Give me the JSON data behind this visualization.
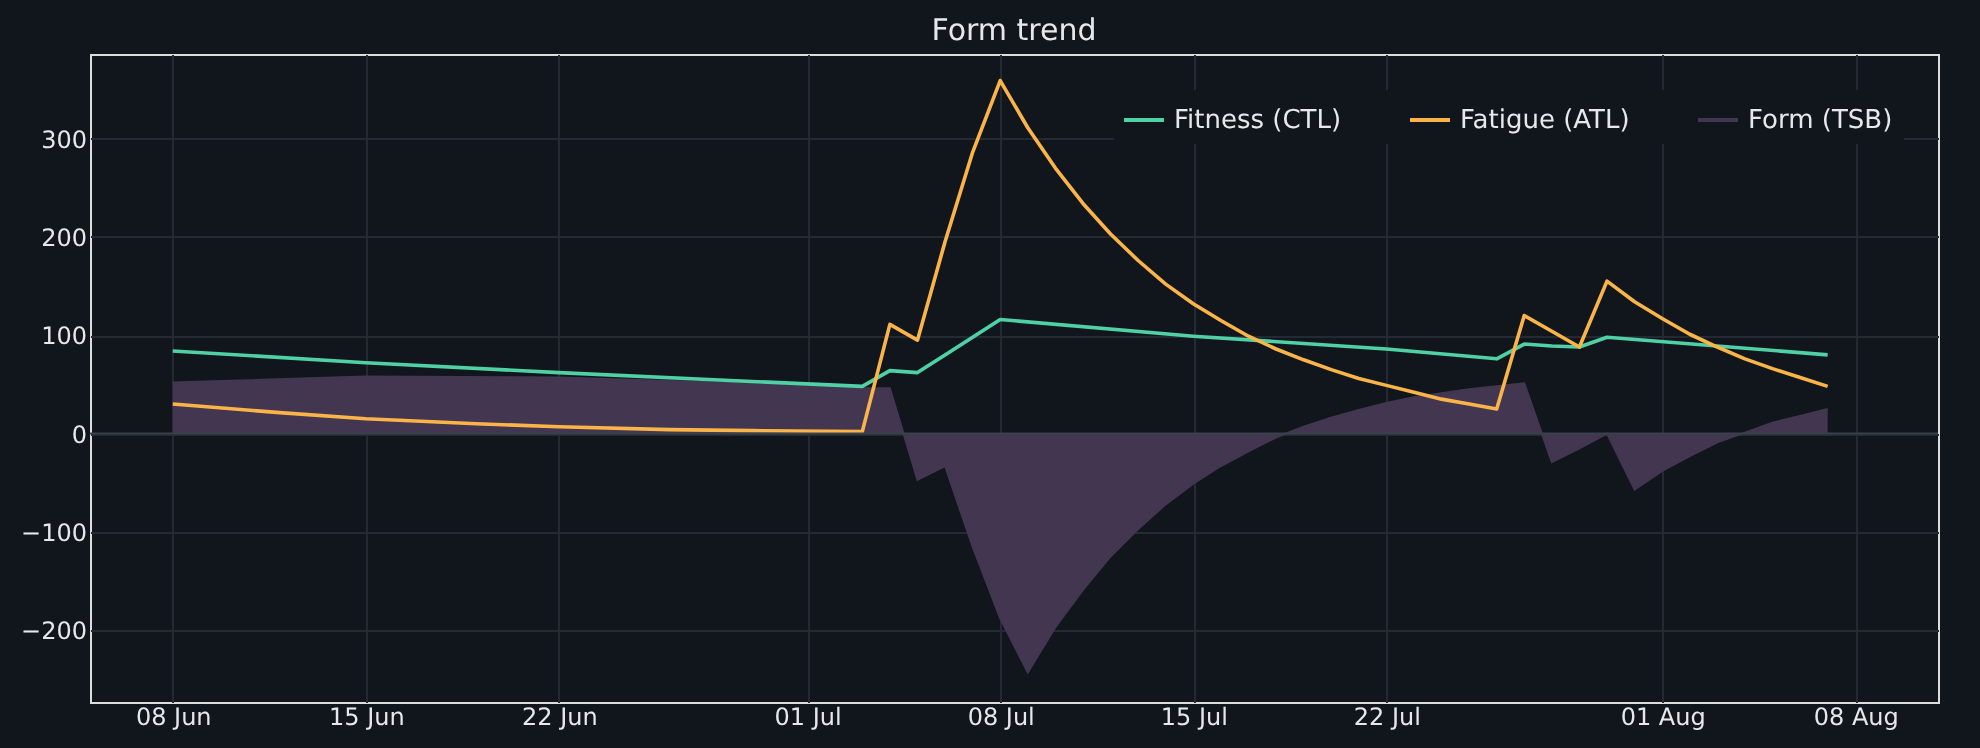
{
  "chart_data": {
    "type": "line",
    "title": "Form trend",
    "xlim": [
      "--06-05",
      "--08-11"
    ],
    "xticks": [
      {
        "value": "--06-08",
        "label": "08 Jun"
      },
      {
        "value": "--06-15",
        "label": "15 Jun"
      },
      {
        "value": "--06-22",
        "label": "22 Jun"
      },
      {
        "value": "--07-01",
        "label": "01 Jul"
      },
      {
        "value": "--07-08",
        "label": "08 Jul"
      },
      {
        "value": "--07-15",
        "label": "15 Jul"
      },
      {
        "value": "--07-22",
        "label": "22 Jul"
      },
      {
        "value": "--08-01",
        "label": "01 Aug"
      },
      {
        "value": "--08-08",
        "label": "08 Aug"
      }
    ],
    "ylim": [
      -273,
      386
    ],
    "yticks": [
      -200,
      -100,
      0,
      100,
      200,
      300
    ],
    "grid": true,
    "legend": "top right",
    "ref_lines": [
      {
        "axis": "y",
        "value": 0,
        "color": "#3a404c"
      }
    ],
    "series": [
      {
        "name": "Form (TSB)",
        "type": "area",
        "color": "#433651",
        "x": [
          "--06-08",
          "--06-15",
          "--06-22",
          "--06-29",
          "--07-03",
          "--07-04",
          "--07-05",
          "--07-06",
          "--07-07",
          "--07-08",
          "--07-09",
          "--07-10",
          "--07-11",
          "--07-12",
          "--07-13",
          "--07-14",
          "--07-15",
          "--07-16",
          "--07-17",
          "--07-18",
          "--07-19",
          "--07-20",
          "--07-21",
          "--07-22",
          "--07-23",
          "--07-24",
          "--07-25",
          "--07-26",
          "--07-27",
          "--07-28",
          "--07-29",
          "--07-30",
          "--07-31",
          "--08-01",
          "--08-02",
          "--08-03",
          "--08-04",
          "--08-05",
          "--08-06",
          "--08-07"
        ],
        "values": [
          52,
          58,
          57,
          51,
          46,
          46,
          -47,
          -33,
          -115,
          -188,
          -243,
          -197,
          -159,
          -125,
          -97,
          -72,
          -51,
          -33,
          -18,
          -4,
          7,
          16,
          24,
          31,
          37,
          41,
          45,
          48,
          51,
          -29,
          -15,
          0,
          -57,
          -38,
          -23,
          -9,
          1,
          11,
          18,
          25
        ]
      },
      {
        "name": "Fitness (CTL)",
        "color": "#4fd1a5",
        "x": [
          "--06-08",
          "--06-15",
          "--06-22",
          "--06-29",
          "--07-03",
          "--07-04",
          "--07-05",
          "--07-06",
          "--07-07",
          "--07-08",
          "--07-15",
          "--07-22",
          "--07-26",
          "--07-27",
          "--07-28",
          "--07-29",
          "--07-30",
          "--08-07"
        ],
        "values": [
          84,
          72,
          62,
          53,
          48,
          64,
          62,
          80,
          98,
          116,
          99,
          86,
          76,
          91,
          89,
          88,
          98,
          80
        ]
      },
      {
        "name": "Fatigue (ATL)",
        "color": "#fbb448",
        "x": [
          "--06-08",
          "--06-12",
          "--06-15",
          "--06-19",
          "--06-22",
          "--06-26",
          "--06-29",
          "--07-03",
          "--07-04",
          "--07-05",
          "--07-06",
          "--07-07",
          "--07-08",
          "--07-09",
          "--07-10",
          "--07-11",
          "--07-12",
          "--07-13",
          "--07-14",
          "--07-15",
          "--07-16",
          "--07-17",
          "--07-18",
          "--07-19",
          "--07-20",
          "--07-21",
          "--07-22",
          "--07-23",
          "--07-24",
          "--07-25",
          "--07-26",
          "--07-27",
          "--07-28",
          "--07-29",
          "--07-30",
          "--07-31",
          "--08-01",
          "--08-02",
          "--08-03",
          "--08-04",
          "--08-05",
          "--08-06",
          "--08-07"
        ],
        "values": [
          30,
          21,
          15,
          10,
          7,
          4,
          3,
          2,
          111,
          95,
          195,
          286,
          359,
          311,
          270,
          234,
          203,
          176,
          152,
          132,
          115,
          99,
          86,
          75,
          65,
          56,
          49,
          42,
          35,
          30,
          25,
          120,
          104,
          88,
          155,
          134,
          117,
          101,
          88,
          76,
          66,
          57,
          48
        ]
      }
    ]
  }
}
